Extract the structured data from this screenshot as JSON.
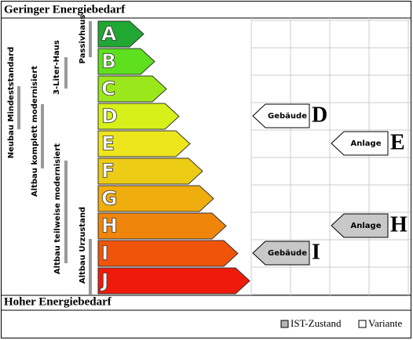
{
  "header": {
    "title": "Geringer Energiebedarf"
  },
  "classes": [
    "A",
    "B",
    "C",
    "D",
    "E",
    "F",
    "G",
    "H",
    "I",
    "J"
  ],
  "standards": [
    "Passivhaus",
    "3-Liter-Haus",
    "Neubau Mindeststandard",
    "Altbau komplett modernisiert",
    "Altbau teilweise modernisiert",
    "Altbau Urzustand"
  ],
  "markers": [
    {
      "label": "Gebäude",
      "letter": "D"
    },
    {
      "label": "Anlage",
      "letter": "E"
    },
    {
      "label": "Anlage",
      "letter": "H"
    },
    {
      "label": "Gebäude",
      "letter": "I"
    }
  ],
  "footer": {
    "title": "Hoher Energiebedarf"
  },
  "legend": [
    "IST-Zustand",
    "Variante"
  ]
}
